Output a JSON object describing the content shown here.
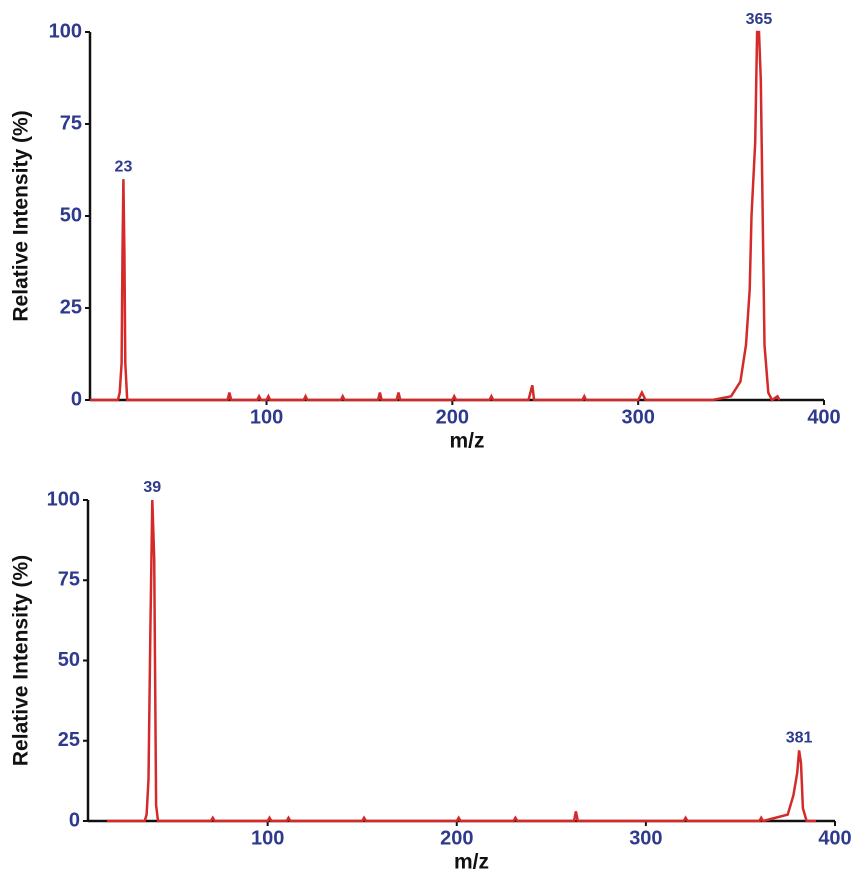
{
  "chart_data": [
    {
      "type": "line",
      "xlabel": "m/z",
      "ylabel": "Relative Intensity (%)",
      "xlim": [
        5,
        400
      ],
      "xticks": [
        100,
        200,
        300,
        400
      ],
      "ylim": [
        0,
        100
      ],
      "yticks": [
        0,
        25,
        50,
        75,
        100
      ],
      "color": "#d42a2a",
      "x": [
        5,
        20,
        21,
        22,
        22.5,
        23,
        23.5,
        24,
        25,
        79,
        80,
        81,
        95,
        96,
        97,
        100,
        101,
        102,
        120,
        121,
        122,
        140,
        141,
        142,
        160,
        161,
        162,
        170,
        171,
        172,
        200,
        201,
        202,
        220,
        221,
        222,
        241,
        242,
        243,
        244,
        270,
        271,
        272,
        300,
        302,
        304,
        340,
        350,
        355,
        358,
        360,
        361,
        363,
        364,
        365,
        366,
        367,
        368,
        370,
        372,
        375,
        376
      ],
      "values": [
        0,
        0,
        2,
        10,
        40,
        60,
        40,
        10,
        0,
        0,
        2,
        0,
        0,
        1,
        0,
        0,
        1,
        0,
        0,
        1,
        0,
        0,
        1,
        0,
        0,
        2,
        0,
        0,
        2,
        0,
        0,
        1,
        0,
        0,
        1,
        0,
        0,
        2,
        4,
        0,
        0,
        1,
        0,
        0,
        2,
        0,
        0,
        1,
        5,
        15,
        30,
        50,
        70,
        100,
        100,
        87,
        50,
        15,
        2,
        0,
        1,
        0
      ],
      "annotations": [
        {
          "text": "23",
          "x": 23,
          "y": 60
        },
        {
          "text": "365",
          "x": 365,
          "y": 100
        }
      ]
    },
    {
      "type": "line",
      "xlabel": "m/z",
      "ylabel": "Relative Intensity (%)",
      "xlim": [
        5,
        400
      ],
      "xticks": [
        100,
        200,
        300,
        400
      ],
      "ylim": [
        0,
        100
      ],
      "yticks": [
        0,
        25,
        50,
        75,
        100
      ],
      "color": "#d42a2a",
      "x": [
        15,
        35,
        36,
        37,
        38,
        39,
        40,
        41,
        42,
        70,
        71,
        72,
        100,
        101,
        102,
        110,
        111,
        112,
        150,
        151,
        152,
        200,
        201,
        202,
        230,
        231,
        232,
        262,
        263,
        264,
        320,
        321,
        322,
        360,
        361,
        362,
        375,
        378,
        380,
        381,
        382,
        383,
        385,
        390
      ],
      "values": [
        0,
        0,
        2,
        13,
        60,
        100,
        82,
        5,
        0,
        0,
        1,
        0,
        0,
        1,
        0,
        0,
        1,
        0,
        0,
        1,
        0,
        0,
        1,
        0,
        0,
        1,
        0,
        0,
        3,
        0,
        0,
        1,
        0,
        0,
        1,
        0,
        2,
        8,
        15,
        22,
        18,
        4,
        0,
        0
      ],
      "annotations": [
        {
          "text": "39",
          "x": 39,
          "y": 100
        },
        {
          "text": "381",
          "x": 381,
          "y": 22
        }
      ]
    }
  ]
}
